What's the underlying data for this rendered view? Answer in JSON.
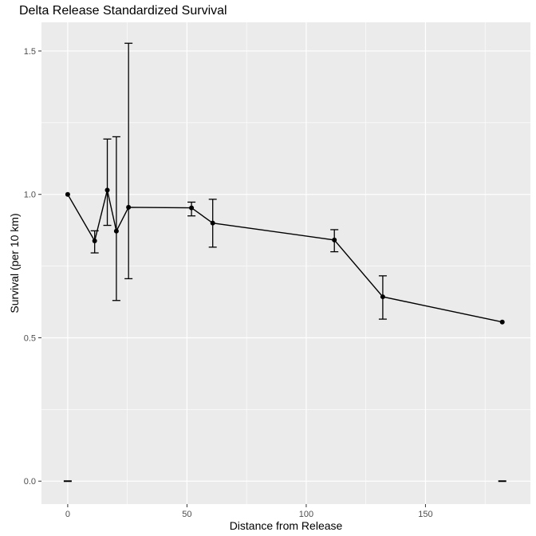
{
  "chart_data": {
    "type": "line",
    "title": "Delta Release Standardized Survival",
    "xlabel": "Distance from Release",
    "ylabel": "Survival (per 10 km)",
    "xlim": [
      -11,
      194
    ],
    "ylim": [
      -0.08,
      1.6
    ],
    "x_ticks": [
      0,
      50,
      100,
      150
    ],
    "x_tick_labels": [
      "0",
      "50",
      "100",
      "150"
    ],
    "y_ticks": [
      0.0,
      0.5,
      1.0,
      1.5
    ],
    "y_tick_labels": [
      "0.0",
      "0.5",
      "1.0",
      "1.5"
    ],
    "grid": true,
    "background": "#ebebeb",
    "grid_color": "#ffffff",
    "line_color": "#000000",
    "series": [
      {
        "points": [
          {
            "x": 0,
            "y": 1.0,
            "lo": 0.0,
            "hi": 0.0,
            "err_at_zero": true
          },
          {
            "x": 11.3,
            "y": 0.838,
            "lo": 0.796,
            "hi": 0.873
          },
          {
            "x": 16.6,
            "y": 1.015,
            "lo": 0.892,
            "hi": 1.193
          },
          {
            "x": 20.4,
            "y": 0.872,
            "lo": 0.63,
            "hi": 1.201
          },
          {
            "x": 25.5,
            "y": 0.955,
            "lo": 0.706,
            "hi": 1.527
          },
          {
            "x": 51.9,
            "y": 0.953,
            "lo": 0.925,
            "hi": 0.973
          },
          {
            "x": 60.8,
            "y": 0.9,
            "lo": 0.816,
            "hi": 0.983
          },
          {
            "x": 111.8,
            "y": 0.841,
            "lo": 0.8,
            "hi": 0.877
          },
          {
            "x": 132.1,
            "y": 0.643,
            "lo": 0.565,
            "hi": 0.716
          },
          {
            "x": 182.2,
            "y": 0.555,
            "lo": 0.0,
            "hi": 0.0,
            "err_at_zero": true
          }
        ]
      }
    ]
  }
}
